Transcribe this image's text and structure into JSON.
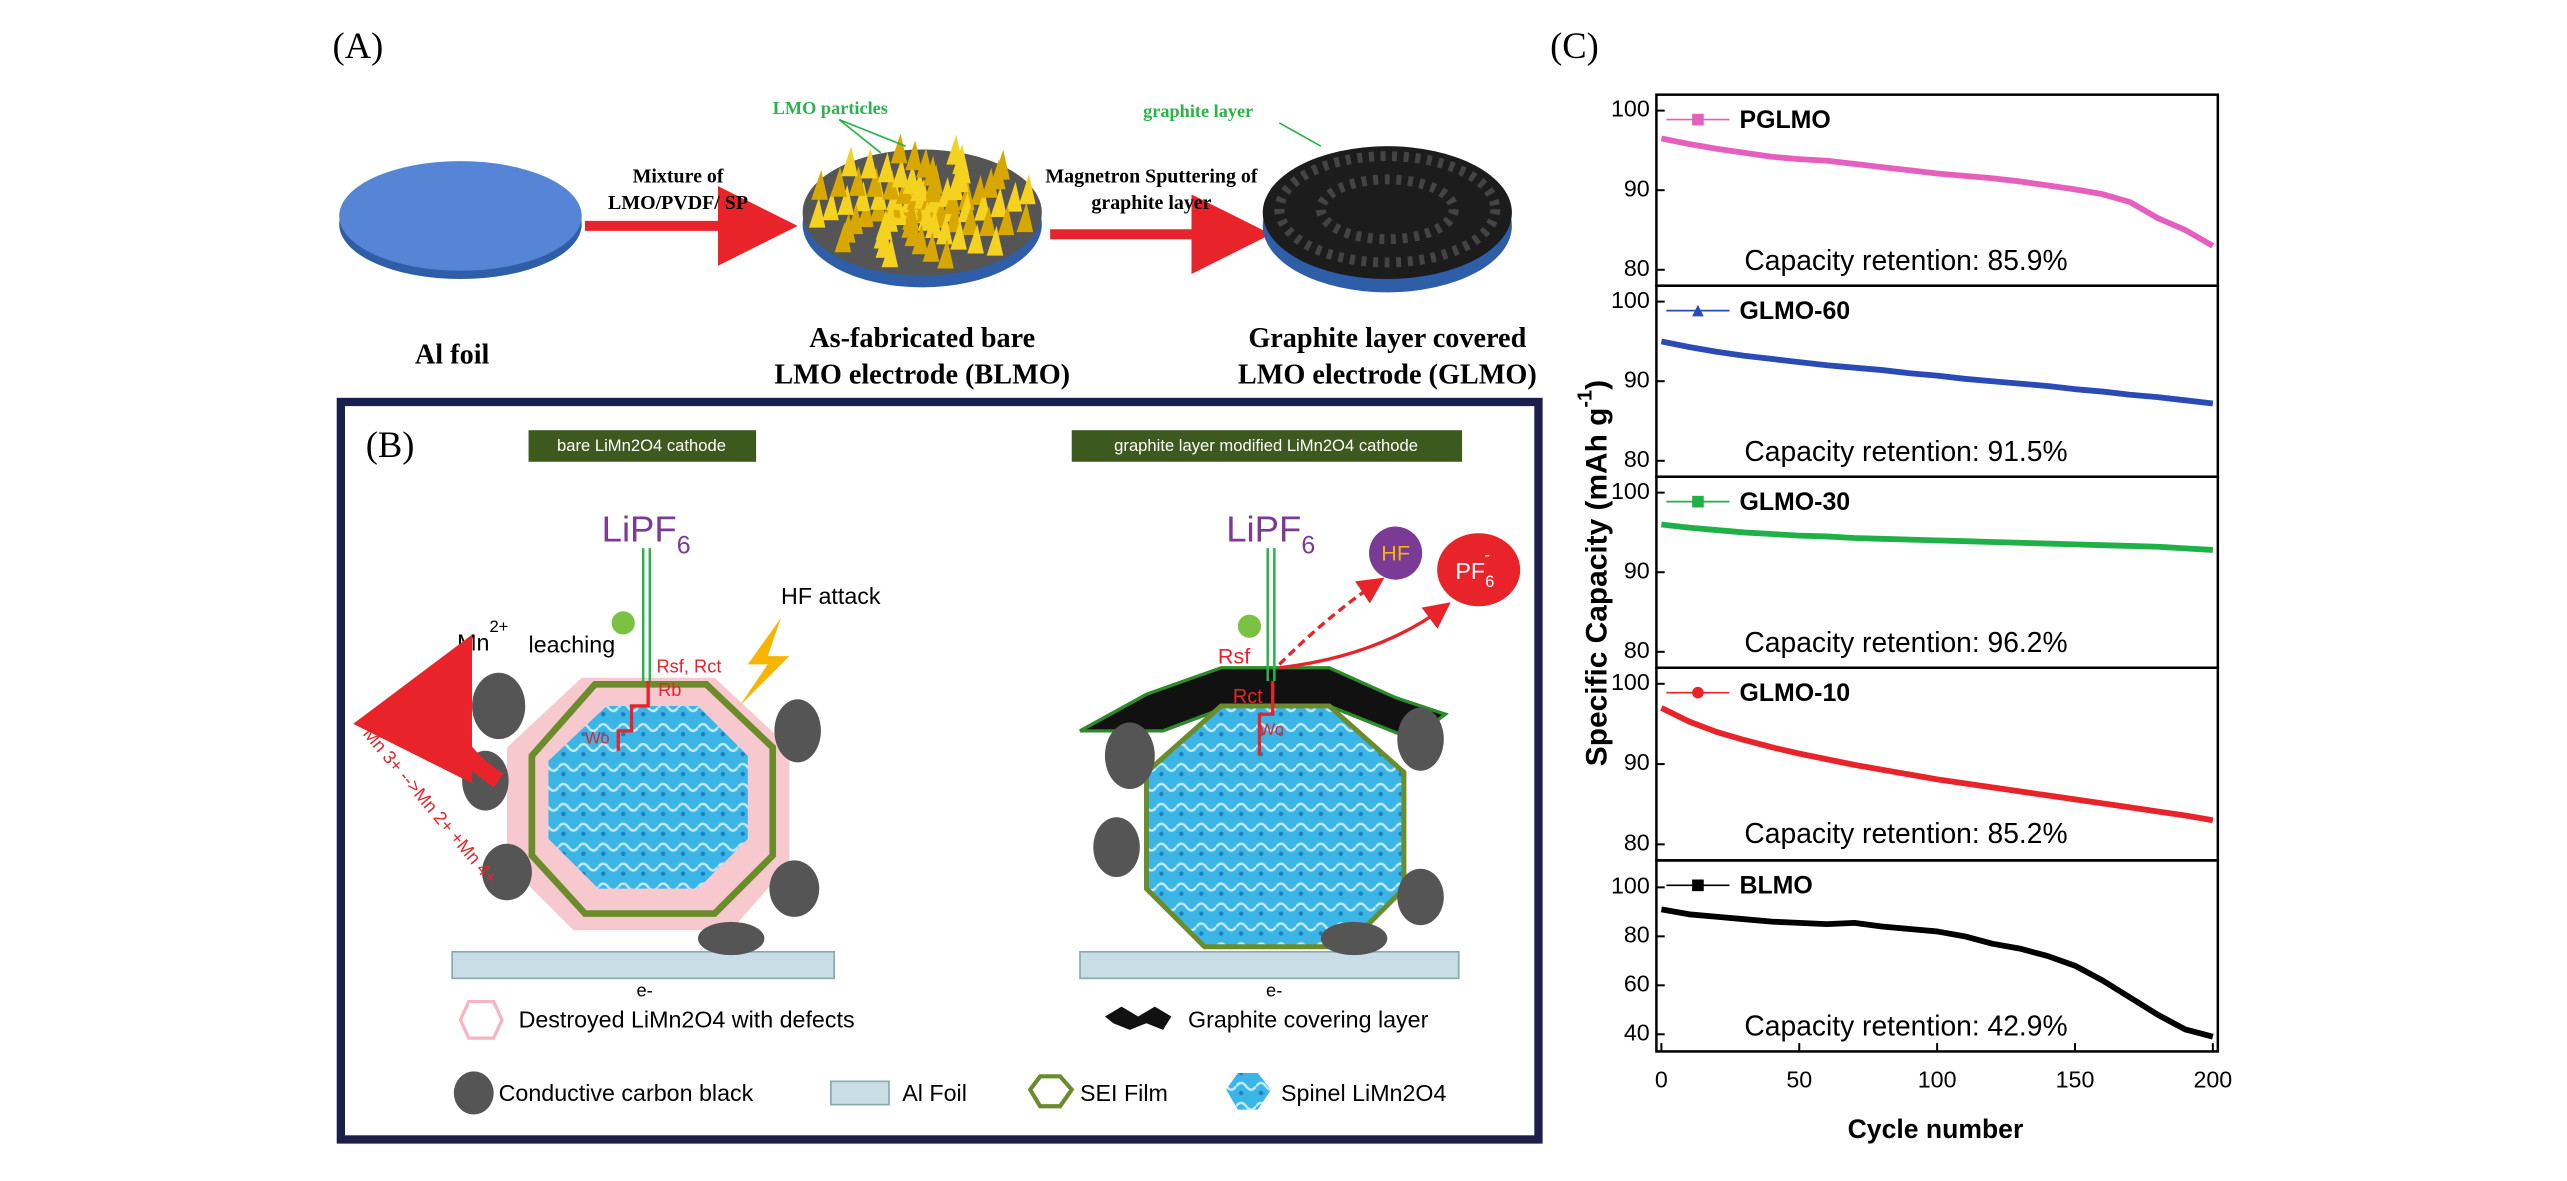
{
  "panel_a": {
    "label": "(A)",
    "lmo_particles": "LMO particles",
    "graphite_layer": "graphite layer",
    "step1": [
      "Mixture of",
      "LMO/PVDF/ SP"
    ],
    "step2": [
      "Magnetron Sputtering of",
      "graphite layer"
    ],
    "al_foil": "Al foil",
    "blmo": [
      "As-fabricated bare",
      "LMO electrode (BLMO)"
    ],
    "glmo": [
      "Graphite layer covered",
      "LMO electrode (GLMO)"
    ]
  },
  "panel_b": {
    "label": "(B)",
    "left_title": "bare LiMn2O4 cathode",
    "right_title": "graphite layer modified LiMn2O4 cathode",
    "lipf": {
      "main": "LiPF",
      "sub": "6"
    },
    "mn": {
      "main": "Mn",
      "sup": "2+"
    },
    "leaching": "leaching",
    "hf_attack": "HF attack",
    "rsf_rct": "Rsf, Rct",
    "rb": "Rb",
    "wo": "Wo",
    "reaction": "Mn 3+ -->Mn 2+ +Mn 4+",
    "e": "e-",
    "hf": "HF",
    "pf": {
      "main": "PF",
      "sub": "6",
      "sup": "-"
    },
    "rsf": "Rsf",
    "rct": "Rct",
    "legend": {
      "destroyed": "Destroyed LiMn2O4 with defects",
      "graphite": "Graphite covering layer",
      "carbon": "Conductive carbon black",
      "foil": "Al Foil",
      "sei": "SEI Film",
      "spinel": "Spinel LiMn2O4"
    }
  },
  "panel_c": {
    "label": "(C)",
    "ylabel": {
      "main": "Specific Capacity (mAh g",
      "sup": "-1",
      "end": ")"
    },
    "xlabel": "Cycle number"
  },
  "chart_data": [
    {
      "type": "line",
      "marker": "square",
      "annotation": "Capacity retention: 85.9%",
      "x": [
        0,
        10,
        20,
        30,
        40,
        50,
        60,
        70,
        80,
        90,
        100,
        110,
        120,
        130,
        140,
        150,
        160,
        170,
        180,
        190,
        200
      ],
      "xlim": [
        0,
        200
      ],
      "ylim": [
        78,
        102
      ],
      "yticks": [
        80,
        90,
        100
      ],
      "series": [
        {
          "name": "PGLMO",
          "color": "#e65fbe",
          "values": [
            96.5,
            95.8,
            95.2,
            94.7,
            94.2,
            93.9,
            93.7,
            93.3,
            92.9,
            92.5,
            92.1,
            91.8,
            91.5,
            91.1,
            90.6,
            90.1,
            89.5,
            88.5,
            86.5,
            85,
            83
          ]
        }
      ]
    },
    {
      "type": "line",
      "marker": "triangle",
      "annotation": "Capacity retention: 91.5%",
      "x": [
        0,
        10,
        20,
        30,
        40,
        50,
        60,
        70,
        80,
        90,
        100,
        110,
        120,
        130,
        140,
        150,
        160,
        170,
        180,
        190,
        200
      ],
      "xlim": [
        0,
        200
      ],
      "ylim": [
        78,
        102
      ],
      "yticks": [
        80,
        90,
        100
      ],
      "series": [
        {
          "name": "GLMO-60",
          "color": "#2a4ab5",
          "values": [
            95,
            94.3,
            93.7,
            93.2,
            92.8,
            92.4,
            92,
            91.7,
            91.4,
            91,
            90.7,
            90.3,
            90,
            89.7,
            89.4,
            89,
            88.7,
            88.3,
            88,
            87.6,
            87.2
          ]
        }
      ]
    },
    {
      "type": "line",
      "marker": "square",
      "annotation": "Capacity retention: 96.2%",
      "x": [
        0,
        10,
        20,
        30,
        40,
        50,
        60,
        70,
        80,
        90,
        100,
        110,
        120,
        130,
        140,
        150,
        160,
        170,
        180,
        190,
        200
      ],
      "xlim": [
        0,
        200
      ],
      "ylim": [
        78,
        102
      ],
      "yticks": [
        80,
        90,
        100
      ],
      "series": [
        {
          "name": "GLMO-30",
          "color": "#1fb148",
          "values": [
            96,
            95.6,
            95.3,
            95,
            94.8,
            94.6,
            94.5,
            94.3,
            94.2,
            94.1,
            94,
            93.9,
            93.8,
            93.7,
            93.6,
            93.5,
            93.4,
            93.3,
            93.2,
            93,
            92.8
          ]
        }
      ]
    },
    {
      "type": "line",
      "marker": "circle",
      "annotation": "Capacity retention: 85.2%",
      "x": [
        0,
        10,
        20,
        30,
        40,
        50,
        60,
        70,
        80,
        90,
        100,
        110,
        120,
        130,
        140,
        150,
        160,
        170,
        180,
        190,
        200
      ],
      "xlim": [
        0,
        200
      ],
      "ylim": [
        78,
        102
      ],
      "yticks": [
        80,
        90,
        100
      ],
      "series": [
        {
          "name": "GLMO-10",
          "color": "#e8232a",
          "values": [
            97,
            95.3,
            94,
            93,
            92.1,
            91.3,
            90.6,
            89.9,
            89.3,
            88.7,
            88.1,
            87.6,
            87.1,
            86.6,
            86.1,
            85.6,
            85.1,
            84.6,
            84.1,
            83.6,
            83
          ]
        }
      ]
    },
    {
      "type": "line",
      "marker": "square",
      "annotation": "Capacity retention: 42.9%",
      "x": [
        0,
        10,
        20,
        30,
        40,
        50,
        60,
        70,
        80,
        90,
        100,
        110,
        120,
        130,
        140,
        150,
        160,
        170,
        180,
        190,
        200
      ],
      "xlim": [
        0,
        200
      ],
      "ylim": [
        33,
        111
      ],
      "yticks": [
        40,
        60,
        80,
        100
      ],
      "xticks": [
        0,
        50,
        100,
        150,
        200
      ],
      "series": [
        {
          "name": "BLMO",
          "color": "#000000",
          "values": [
            91,
            89,
            88,
            87,
            86,
            85.5,
            85,
            85.5,
            84,
            83,
            82,
            80,
            77,
            75,
            72,
            68,
            62,
            55,
            48,
            42,
            39
          ]
        }
      ]
    }
  ]
}
